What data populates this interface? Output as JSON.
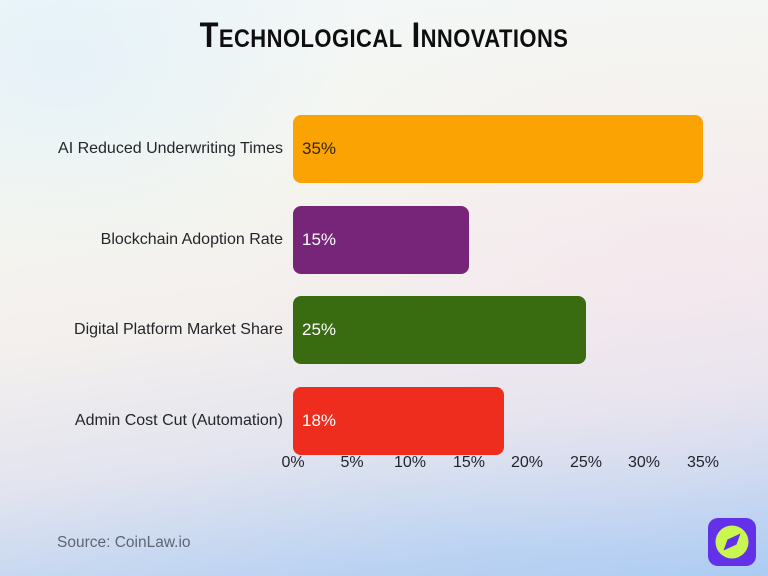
{
  "title": "Technological Innovations",
  "chart_data": {
    "type": "bar",
    "orientation": "horizontal",
    "title": "Technological Innovations",
    "categories": [
      "AI Reduced Underwriting Times",
      "Blockchain Adoption Rate",
      "Digital Platform Market Share",
      "Admin Cost Cut (Automation)"
    ],
    "values": [
      35,
      15,
      25,
      18
    ],
    "value_labels": [
      "35%",
      "15%",
      "25%",
      "18%"
    ],
    "bar_colors": [
      "#FBA303",
      "#762579",
      "#396B11",
      "#EE2D1F"
    ],
    "value_label_colors": [
      "#332503",
      "#FFFFFF",
      "#FFFFFF",
      "#FFFFFF"
    ],
    "xlim": [
      0,
      35
    ],
    "x_tick_values": [
      0,
      5,
      10,
      15,
      20,
      25,
      30,
      35
    ],
    "x_tick_labels": [
      "0%",
      "5%",
      "10%",
      "15%",
      "20%",
      "25%",
      "30%",
      "35%"
    ],
    "grid": false,
    "legend": null
  },
  "footer": {
    "source": "Source: CoinLaw.io"
  },
  "logo": {
    "name": "coinlaw-compass-logo",
    "bg_color": "#6331E8",
    "circle_color": "#C9F651",
    "needle_color": "#6331E8"
  }
}
